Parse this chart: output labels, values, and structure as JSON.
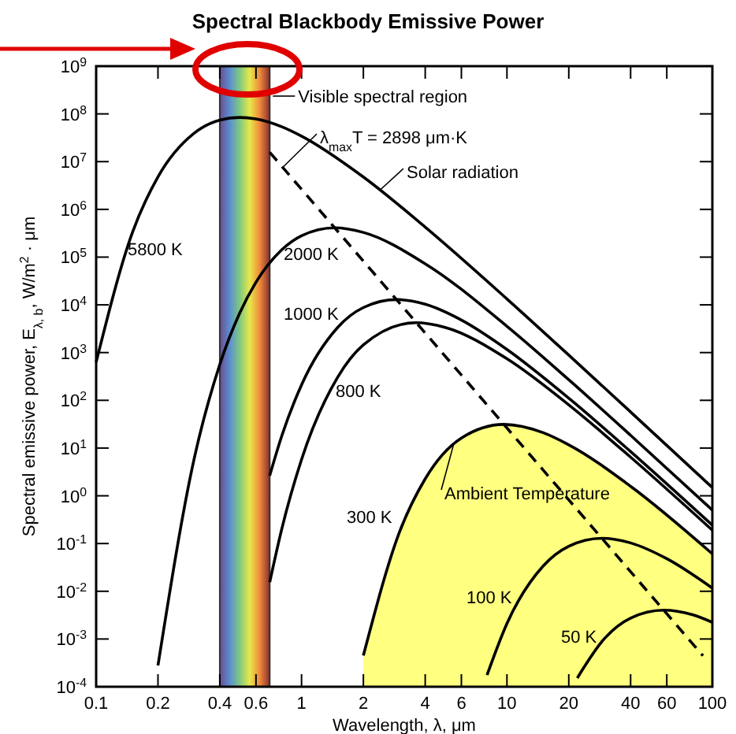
{
  "chart_data": {
    "type": "line",
    "title": "Spectral Blackbody Emissive Power",
    "xlabel": "Wavelength, λ, μm",
    "ylabel": "Spectral emissive power, E$_{λ, b}$, W/m$^{2}$ · μm",
    "log": "xy",
    "grid": false,
    "xlim": [
      0.1,
      100
    ],
    "ylim": [
      0.0001,
      1000000000
    ],
    "xticks": [
      0.1,
      0.2,
      0.4,
      0.6,
      1,
      2,
      4,
      6,
      10,
      20,
      40,
      60,
      100
    ],
    "yticks": [
      {
        "value": 0.0001,
        "label": "10$^{-4}$"
      },
      {
        "value": 0.001,
        "label": "10$^{-3}$"
      },
      {
        "value": 0.01,
        "label": "10$^{-2}$"
      },
      {
        "value": 0.1,
        "label": "10$^{-1}$"
      },
      {
        "value": 1,
        "label": "10$^{0}$"
      },
      {
        "value": 10,
        "label": "10$^{1}$"
      },
      {
        "value": 100,
        "label": "10$^{2}$"
      },
      {
        "value": 1000,
        "label": "10$^{3}$"
      },
      {
        "value": 10000,
        "label": "10$^{4}$"
      },
      {
        "value": 100000,
        "label": "10$^{5}$"
      },
      {
        "value": 1000000,
        "label": "10$^{6}$"
      },
      {
        "value": 10000000,
        "label": "10$^{7}$"
      },
      {
        "value": 100000000,
        "label": "10$^{8}$"
      },
      {
        "value": 1000000000,
        "label": "10$^{9}$"
      }
    ],
    "bands": [
      {
        "axis": "x",
        "from": 0.4,
        "to": 0.7,
        "label": "Visible spectral region"
      }
    ],
    "annotations": [
      {
        "text": "Solar radiation",
        "x": 2.4,
        "y": 2500000
      },
      {
        "text": "Ambient Temperature",
        "x": 5.5,
        "y": 12
      },
      {
        "text": "λ$_{max}$T = 2898 μm·K",
        "x": 0.81,
        "y": 7600000
      }
    ],
    "series": [
      {
        "name": "5800 K",
        "color": "#000000",
        "x": [
          0.1,
          0.15,
          0.2,
          0.3,
          0.4,
          0.5,
          0.6,
          0.8,
          1,
          2,
          4,
          10,
          20,
          40,
          100
        ],
        "values": [
          629,
          323000,
          4800000,
          39400000,
          74200000,
          84400000,
          78400000,
          53900000,
          34200000,
          4760000,
          425000,
          13300,
          885,
          57.1,
          1.49
        ]
      },
      {
        "name": "2000 K",
        "color": "#000000",
        "x": [
          0.2,
          0.3,
          0.4,
          0.5,
          0.6,
          0.8,
          1,
          1.45,
          2,
          4,
          10,
          20,
          40,
          100
        ],
        "values": [
          0.000278,
          5.94,
          563,
          6750,
          29800,
          142000,
          281000,
          412000,
          329000,
          72500,
          3554,
          270,
          18.5,
          0.502
        ]
      },
      {
        "name": "1000 K",
        "color": "#000000",
        "x": [
          0.7,
          0.8,
          1,
          1.5,
          2,
          2.9,
          4,
          6,
          10,
          20,
          40,
          100
        ],
        "values": [
          2.65,
          17.6,
          211,
          3370,
          8780,
          12900,
          10300,
          4810,
          1164,
          111,
          8.44,
          0.242
        ]
      },
      {
        "name": "800 K",
        "color": "#000000",
        "x": [
          0.7,
          0.8,
          1,
          1.5,
          2,
          3.6,
          5,
          10,
          20,
          40,
          100
        ],
        "values": [
          0.0155,
          0.197,
          5.76,
          306,
          1453,
          4220,
          3370,
          742,
          80.2,
          6.44,
          0.19
        ]
      },
      {
        "name": "300 K",
        "type": "area",
        "color": "#ffff80",
        "x": [
          2,
          3,
          4,
          6,
          9.66,
          15,
          20,
          40,
          100
        ],
        "values": [
          0.000451,
          0.175,
          2.27,
          16.2,
          31.3,
          21,
          11.7,
          1.58,
          0.0608
        ]
      },
      {
        "name": "100 K",
        "color": "#000000",
        "x": [
          8,
          10,
          15,
          20,
          29,
          40,
          60,
          100
        ],
        "values": [
          0.000176,
          0.00211,
          0.0337,
          0.0878,
          0.129,
          0.103,
          0.0481,
          0.01164
        ]
      },
      {
        "name": "50 K",
        "color": "#000000",
        "x": [
          22,
          30,
          40,
          58,
          80,
          100
        ],
        "values": [
          0.000152,
          0.00105,
          0.00275,
          0.00402,
          0.00322,
          0.00223
        ]
      },
      {
        "color": "#000000",
        "line_style": "dashed",
        "x": [
          0.7,
          90
        ],
        "values": [
          15700000,
          0.000445
        ]
      }
    ]
  }
}
